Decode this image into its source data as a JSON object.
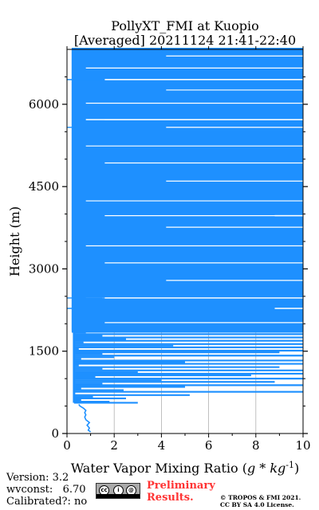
{
  "chart_data": {
    "type": "line",
    "title_line1": "PollyXT_FMI at Kuopio",
    "title_line2": "[Averaged] 20211124 21:41-22:40",
    "xlabel": "Water Vapor Mixing Ratio (g * kg^{-1})",
    "ylabel": "Height (m)",
    "xlim": [
      0,
      10
    ],
    "ylim": [
      0,
      7000
    ],
    "x_ticks": [
      "0",
      "2",
      "4",
      "6",
      "8",
      "10"
    ],
    "y_ticks": [
      "0",
      "1500",
      "3000",
      "4500",
      "6000"
    ],
    "grid": "vertical",
    "series": [
      {
        "color": "#1e90ff",
        "profile_low": [
          [
            1.0,
            30
          ],
          [
            0.9,
            60
          ],
          [
            0.95,
            100
          ],
          [
            0.85,
            150
          ],
          [
            0.95,
            200
          ],
          [
            0.8,
            250
          ],
          [
            0.75,
            300
          ],
          [
            0.8,
            340
          ],
          [
            0.75,
            380
          ],
          [
            0.8,
            420
          ],
          [
            0.7,
            460
          ],
          [
            0.55,
            500
          ],
          [
            0.5,
            530
          ]
        ],
        "profile_mid": [
          [
            3.0,
            560
          ],
          [
            1.8,
            580
          ],
          [
            0.6,
            610
          ],
          [
            2.5,
            640
          ],
          [
            1.1,
            670
          ],
          [
            5.2,
            700
          ],
          [
            0.3,
            730
          ],
          [
            10,
            760
          ],
          [
            2.4,
            790
          ],
          [
            0.6,
            820
          ],
          [
            5.0,
            850
          ],
          [
            10,
            880
          ],
          [
            1.5,
            910
          ],
          [
            8.8,
            940
          ],
          [
            4.0,
            970
          ],
          [
            10,
            1000
          ],
          [
            1.2,
            1030
          ],
          [
            7.8,
            1060
          ],
          [
            10,
            1090
          ],
          [
            3.0,
            1120
          ],
          [
            10,
            1150
          ],
          [
            1.5,
            1180
          ],
          [
            9.0,
            1210
          ],
          [
            0.5,
            1240
          ],
          [
            10,
            1270
          ],
          [
            5.0,
            1300
          ],
          [
            10,
            1330
          ],
          [
            0.6,
            1360
          ],
          [
            2.0,
            1390
          ],
          [
            10,
            1420
          ],
          [
            1.5,
            1450
          ],
          [
            9.0,
            1480
          ],
          [
            10,
            1510
          ],
          [
            0.5,
            1540
          ],
          [
            10,
            1570
          ],
          [
            4.5,
            1600
          ],
          [
            10,
            1630
          ],
          [
            0.7,
            1660
          ],
          [
            10,
            1690
          ],
          [
            2.5,
            1720
          ],
          [
            10,
            1750
          ],
          [
            1.5,
            1780
          ],
          [
            10,
            1810
          ],
          [
            0.8,
            1840
          ],
          [
            10,
            1870
          ]
        ],
        "y_range_saturated": [
          1870,
          7000
        ],
        "gap_segments": [
          [
            1.5,
            2470
          ],
          [
            8.8,
            2280
          ],
          [
            8.8,
            3970
          ],
          [
            1.6,
            6450
          ],
          [
            0.8,
            5720
          ]
        ]
      }
    ]
  },
  "footer": {
    "version": "Version: 3.2",
    "wvconst": "wvconst:   6.70",
    "calibrated": "Calibrated?: no",
    "preliminary": "Preliminary\nResults.",
    "copyright": "© TROPOS & FMI 2021.\nCC BY SA 4.0 License."
  }
}
